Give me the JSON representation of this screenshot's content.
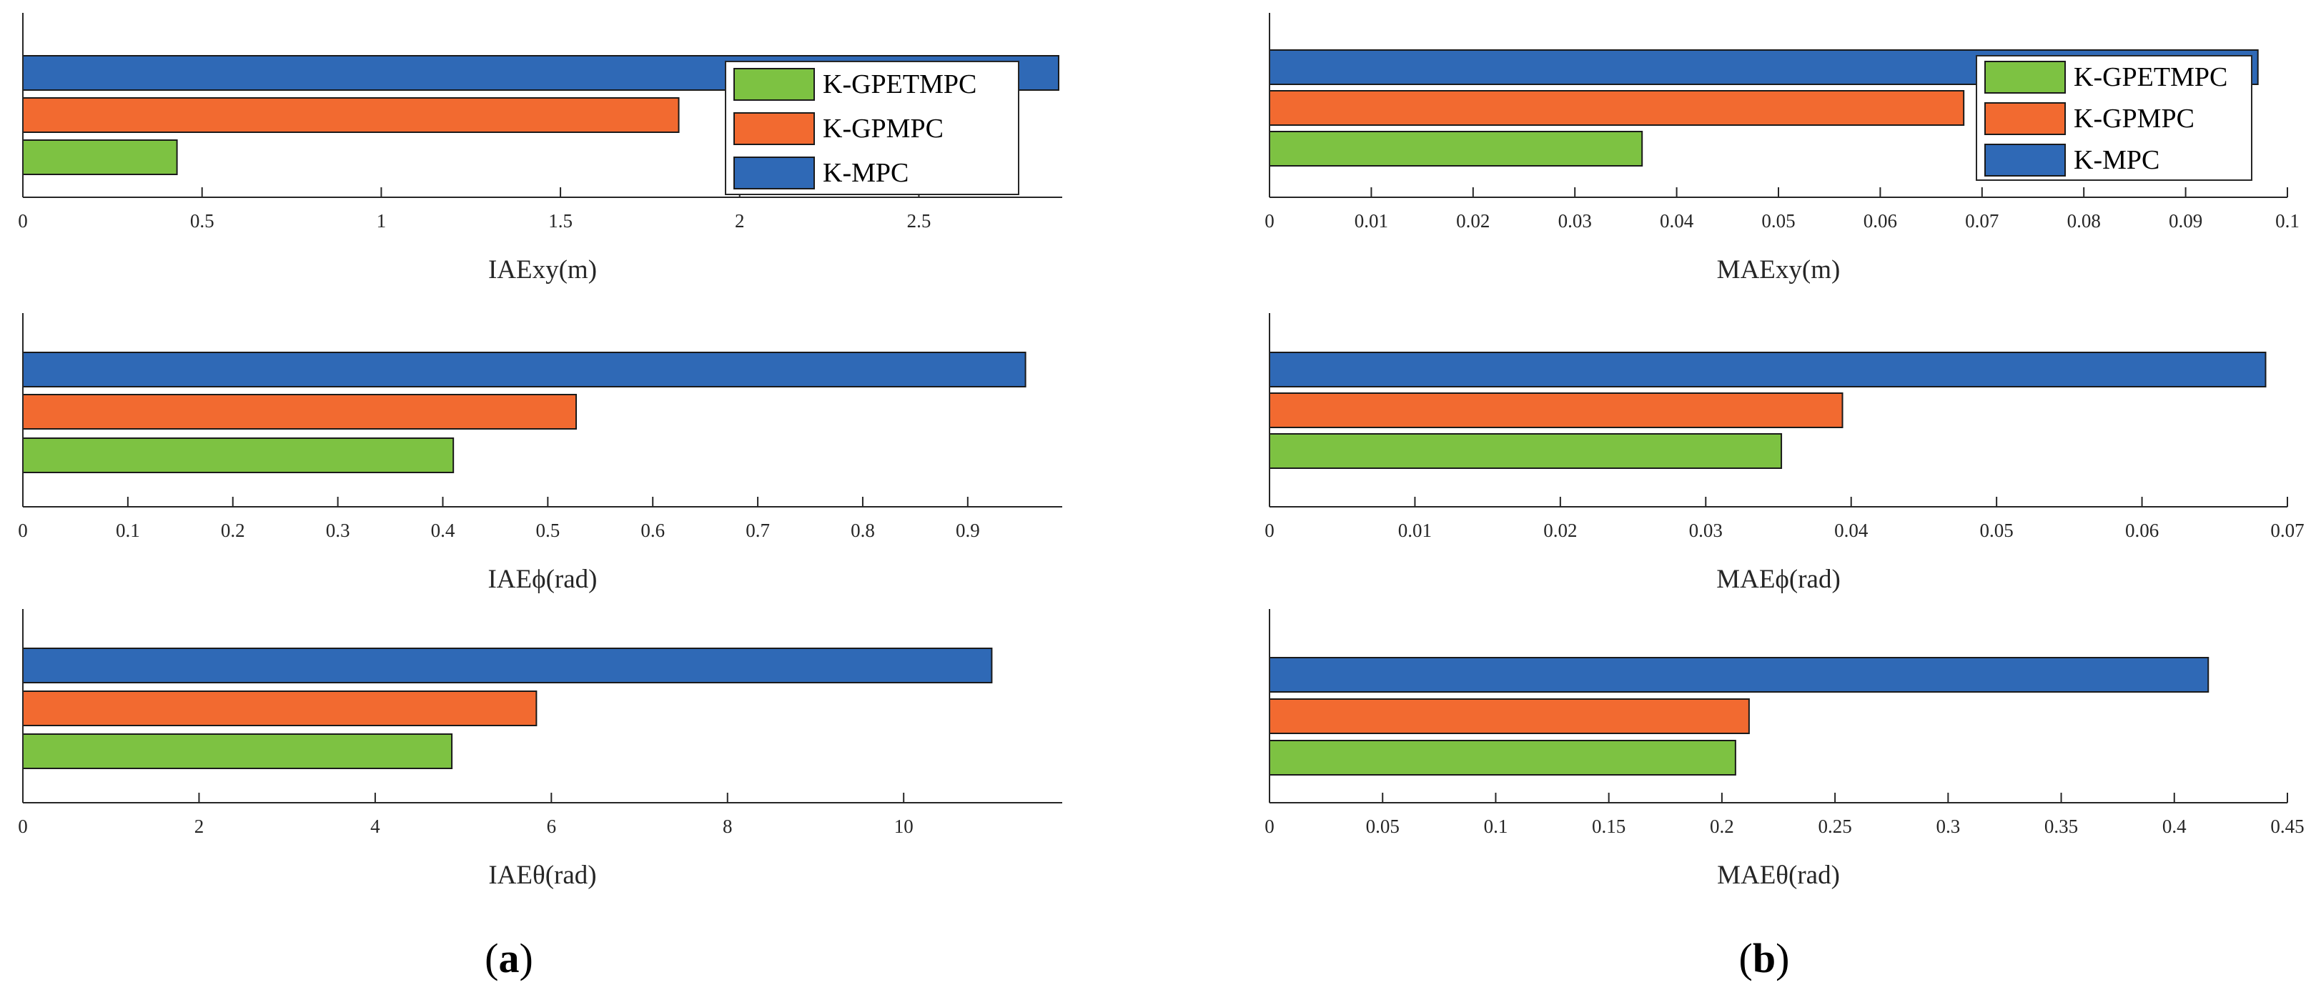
{
  "series_colors": {
    "K-GPETMPC": "#7dc242",
    "K-GPMPC": "#f26a30",
    "K-MPC": "#2f69b6"
  },
  "legend_order": [
    "K-GPETMPC",
    "K-GPMPC",
    "K-MPC"
  ],
  "bar_order_bottom_to_top": [
    "K-GPETMPC",
    "K-GPMPC",
    "K-MPC"
  ],
  "panel_labels": {
    "a": "a",
    "b": "b"
  },
  "chart_data": [
    {
      "id": "iae-xy",
      "type": "bar",
      "orientation": "horizontal",
      "xlabel": "IAExy(m)",
      "xlim": [
        0,
        2.9
      ],
      "ticks": [
        "0",
        "0.5",
        "1",
        "1.5",
        "2",
        "2.5"
      ],
      "series": [
        {
          "name": "K-GPETMPC",
          "values": [
            0.43
          ]
        },
        {
          "name": "K-GPMPC",
          "values": [
            1.83
          ]
        },
        {
          "name": "K-MPC",
          "values": [
            2.89
          ]
        }
      ],
      "legend": true,
      "legend_position": "top-right"
    },
    {
      "id": "mae-xy",
      "type": "bar",
      "orientation": "horizontal",
      "xlabel": "MAExy(m)",
      "xlim": [
        0,
        0.1
      ],
      "ticks": [
        "0",
        "0.01",
        "0.02",
        "0.03",
        "0.04",
        "0.05",
        "0.06",
        "0.07",
        "0.08",
        "0.09",
        "0.1"
      ],
      "series": [
        {
          "name": "K-GPETMPC",
          "values": [
            0.0366
          ]
        },
        {
          "name": "K-GPMPC",
          "values": [
            0.0682
          ]
        },
        {
          "name": "K-MPC",
          "values": [
            0.0971
          ]
        }
      ],
      "legend": true,
      "legend_position": "top-right"
    },
    {
      "id": "iae-phi",
      "type": "bar",
      "orientation": "horizontal",
      "xlabel": "IAEϕ(rad)",
      "xlim": [
        0,
        0.99
      ],
      "ticks": [
        "0",
        "0.1",
        "0.2",
        "0.3",
        "0.4",
        "0.5",
        "0.6",
        "0.7",
        "0.8",
        "0.9"
      ],
      "series": [
        {
          "name": "K-GPETMPC",
          "values": [
            0.41
          ]
        },
        {
          "name": "K-GPMPC",
          "values": [
            0.527
          ]
        },
        {
          "name": "K-MPC",
          "values": [
            0.955
          ]
        }
      ],
      "legend": false
    },
    {
      "id": "mae-phi",
      "type": "bar",
      "orientation": "horizontal",
      "xlabel": "MAEϕ(rad)",
      "xlim": [
        0,
        0.07
      ],
      "ticks": [
        "0",
        "0.01",
        "0.02",
        "0.03",
        "0.04",
        "0.05",
        "0.06",
        "0.07"
      ],
      "series": [
        {
          "name": "K-GPETMPC",
          "values": [
            0.0352
          ]
        },
        {
          "name": "K-GPMPC",
          "values": [
            0.0394
          ]
        },
        {
          "name": "K-MPC",
          "values": [
            0.0685
          ]
        }
      ],
      "legend": false
    },
    {
      "id": "iae-theta",
      "type": "bar",
      "orientation": "horizontal",
      "xlabel": "IAEθ(rad)",
      "xlim": [
        0,
        11.8
      ],
      "ticks": [
        "0",
        "2",
        "4",
        "6",
        "8",
        "10"
      ],
      "series": [
        {
          "name": "K-GPETMPC",
          "values": [
            4.87
          ]
        },
        {
          "name": "K-GPMPC",
          "values": [
            5.83
          ]
        },
        {
          "name": "K-MPC",
          "values": [
            11.0
          ]
        }
      ],
      "legend": false
    },
    {
      "id": "mae-theta",
      "type": "bar",
      "orientation": "horizontal",
      "xlabel": "MAEθ(rad)",
      "xlim": [
        0,
        0.45
      ],
      "ticks": [
        "0",
        "0.05",
        "0.1",
        "0.15",
        "0.2",
        "0.25",
        "0.3",
        "0.35",
        "0.4",
        "0.45"
      ],
      "series": [
        {
          "name": "K-GPETMPC",
          "values": [
            0.206
          ]
        },
        {
          "name": "K-GPMPC",
          "values": [
            0.212
          ]
        },
        {
          "name": "K-MPC",
          "values": [
            0.415
          ]
        }
      ],
      "legend": false
    }
  ]
}
